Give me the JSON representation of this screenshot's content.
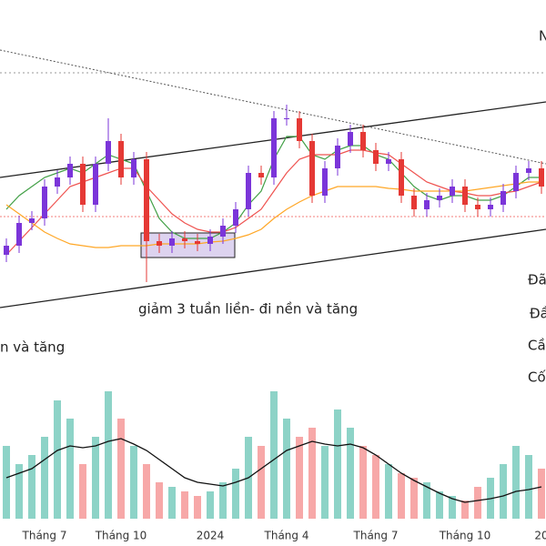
{
  "chart_data": {
    "type": "candlestick",
    "categories": [
      null,
      null,
      null,
      "Tháng 7",
      null,
      null,
      null,
      null,
      null,
      "Tháng 10",
      null,
      null,
      null,
      null,
      null,
      null,
      "2024",
      null,
      null,
      null,
      null,
      null,
      "Tháng 4",
      null,
      null,
      null,
      null,
      null,
      null,
      "Tháng 7",
      null,
      null,
      null,
      null,
      null,
      null,
      "Tháng 10",
      null,
      null,
      null,
      null,
      null,
      "20"
    ],
    "ylim": [
      0,
      320
    ],
    "y2lim": [
      0,
      200
    ],
    "up_color": "#7b35d9",
    "down_color": "#e53935",
    "open": [
      40,
      50,
      75,
      80,
      115,
      125,
      140,
      95,
      140,
      165,
      125,
      145,
      55,
      50,
      58,
      55,
      52,
      60,
      72,
      90,
      130,
      125,
      190,
      190,
      165,
      105,
      135,
      160,
      175,
      155,
      140,
      145,
      105,
      90,
      100,
      105,
      115,
      95,
      90,
      95,
      110,
      130,
      135
    ],
    "high": [
      58,
      83,
      88,
      123,
      133,
      148,
      148,
      148,
      190,
      173,
      153,
      153,
      63,
      66,
      66,
      63,
      68,
      80,
      98,
      138,
      138,
      198,
      205,
      198,
      173,
      143,
      168,
      183,
      183,
      163,
      153,
      153,
      113,
      108,
      113,
      123,
      123,
      103,
      103,
      118,
      138,
      143,
      143
    ],
    "low": [
      32,
      42,
      67,
      72,
      107,
      117,
      87,
      87,
      132,
      117,
      117,
      10,
      42,
      42,
      47,
      44,
      44,
      52,
      64,
      82,
      117,
      117,
      182,
      157,
      97,
      97,
      127,
      152,
      147,
      132,
      132,
      97,
      82,
      82,
      92,
      97,
      87,
      82,
      82,
      87,
      102,
      122,
      107
    ],
    "close": [
      50,
      75,
      80,
      115,
      125,
      140,
      95,
      140,
      165,
      125,
      145,
      55,
      50,
      58,
      55,
      52,
      60,
      72,
      90,
      130,
      125,
      190,
      190,
      165,
      105,
      135,
      160,
      175,
      155,
      140,
      145,
      105,
      90,
      100,
      105,
      115,
      95,
      90,
      95,
      110,
      130,
      135,
      115
    ],
    "series": [
      {
        "color": "#43a047",
        "values": [
          90,
          105,
          115,
          125,
          130,
          135,
          130,
          140,
          150,
          145,
          140,
          110,
          80,
          65,
          58,
          58,
          58,
          65,
          75,
          95,
          110,
          145,
          170,
          170,
          150,
          145,
          155,
          160,
          160,
          150,
          145,
          130,
          115,
          105,
          100,
          105,
          105,
          100,
          100,
          105,
          115,
          125,
          125
        ]
      },
      {
        "color": "#ef5350",
        "values": [
          40,
          55,
          70,
          85,
          100,
          115,
          120,
          125,
          130,
          135,
          135,
          115,
          100,
          85,
          75,
          68,
          65,
          65,
          70,
          80,
          90,
          110,
          130,
          145,
          150,
          150,
          150,
          155,
          155,
          152,
          150,
          140,
          130,
          120,
          115,
          110,
          108,
          105,
          105,
          108,
          110,
          115,
          120
        ]
      },
      {
        "color": "#ffa726",
        "values": [
          95,
          85,
          75,
          65,
          58,
          52,
          50,
          48,
          48,
          50,
          50,
          50,
          52,
          52,
          52,
          52,
          54,
          55,
          58,
          62,
          68,
          80,
          90,
          98,
          105,
          110,
          115,
          115,
          115,
          115,
          113,
          112,
          110,
          110,
          110,
          110,
          110,
          112,
          114,
          116,
          118,
          120,
          120
        ]
      }
    ],
    "volume": {
      "up_color": "#8dd3c7",
      "down_color": "#f7a8a8",
      "values": [
        80,
        60,
        70,
        90,
        130,
        110,
        60,
        90,
        140,
        110,
        80,
        60,
        40,
        35,
        30,
        25,
        30,
        40,
        55,
        90,
        80,
        140,
        110,
        90,
        100,
        80,
        120,
        100,
        80,
        70,
        60,
        50,
        45,
        40,
        30,
        25,
        20,
        35,
        45,
        60,
        80,
        70,
        55
      ]
    },
    "volume_ma": {
      "color": "#111111",
      "values": [
        45,
        50,
        55,
        65,
        75,
        80,
        78,
        80,
        85,
        88,
        82,
        75,
        65,
        55,
        45,
        40,
        38,
        36,
        40,
        45,
        55,
        65,
        75,
        80,
        85,
        82,
        80,
        82,
        78,
        70,
        60,
        50,
        42,
        35,
        28,
        22,
        18,
        20,
        22,
        25,
        30,
        32,
        35
      ]
    },
    "annotations": [
      "giảm 3 tuần liền- đi nền và tăng",
      "n và tăng",
      "Đã",
      "Đầ",
      "Cầ",
      "Cố",
      "N"
    ]
  }
}
